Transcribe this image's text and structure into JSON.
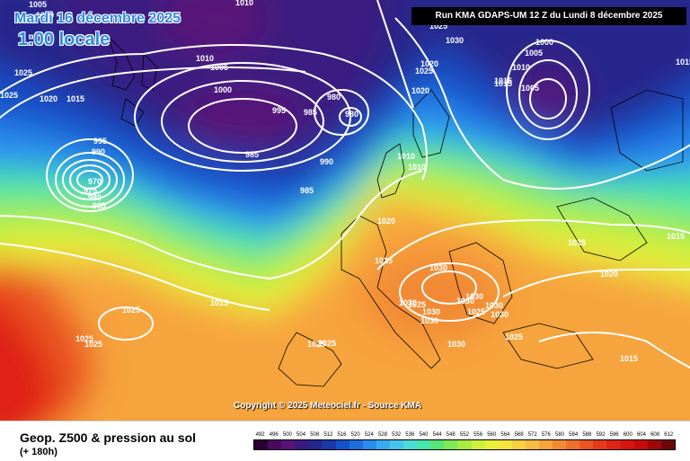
{
  "map": {
    "date_title": "Mardi 16 décembre 2025",
    "time_title": "1:00 locale",
    "run_info": "Run KMA GDAPS-UM 12 Z du Lundi 8 décembre 2025",
    "copyright": "Copyright © 2025 Meteociel.fr - Source KMA",
    "isobar_labels": [
      "1005",
      "1010",
      "1010",
      "1005",
      "1000",
      "995",
      "985",
      "980",
      "980",
      "985",
      "990",
      "995",
      "990",
      "970",
      "975",
      "980",
      "985",
      "1020",
      "1015",
      "1025",
      "1010",
      "1010",
      "1020",
      "1025",
      "1030",
      "1030",
      "1025",
      "1025",
      "1020",
      "1015",
      "1025",
      "1030",
      "1030",
      "1030",
      "1030",
      "1030",
      "1025",
      "1025",
      "1030",
      "1025",
      "1015",
      "1025",
      "1025",
      "1015",
      "1020",
      "1025",
      "1030",
      "1025",
      "1010",
      "1005",
      "1000",
      "1015",
      "1005",
      "1010",
      "1015",
      "985",
      "1020",
      "1020",
      "1025",
      "1025",
      "1030",
      "1015"
    ]
  },
  "footer": {
    "product_title": "Geop. Z500 & pression au sol",
    "range": "(+ 180h)"
  },
  "legend": {
    "labels": [
      "492",
      "496",
      "500",
      "504",
      "508",
      "512",
      "516",
      "520",
      "524",
      "528",
      "532",
      "536",
      "540",
      "544",
      "548",
      "552",
      "556",
      "560",
      "564",
      "568",
      "572",
      "576",
      "580",
      "584",
      "588",
      "592",
      "596",
      "600",
      "604",
      "608",
      "612"
    ],
    "colors": [
      "#2a0030",
      "#4b0a5e",
      "#5a1478",
      "#3a1a80",
      "#26268c",
      "#1a3aa8",
      "#1450c8",
      "#1e6ee0",
      "#2a8cf0",
      "#3aaaf0",
      "#46c4ee",
      "#4adcd8",
      "#46e6a8",
      "#56e676",
      "#7ee856",
      "#a6ec44",
      "#ccf03c",
      "#e8f03a",
      "#f6e43c",
      "#f8d040",
      "#f8bc44",
      "#f6a43c",
      "#f28a34",
      "#ee702c",
      "#ea5424",
      "#e63a1c",
      "#e02416",
      "#d81410",
      "#c80a0a",
      "#a00808",
      "#6e0606"
    ]
  },
  "colors": {
    "title_blue": "#2f8be0",
    "isobar": "#ffffff",
    "coast": "#000000"
  }
}
